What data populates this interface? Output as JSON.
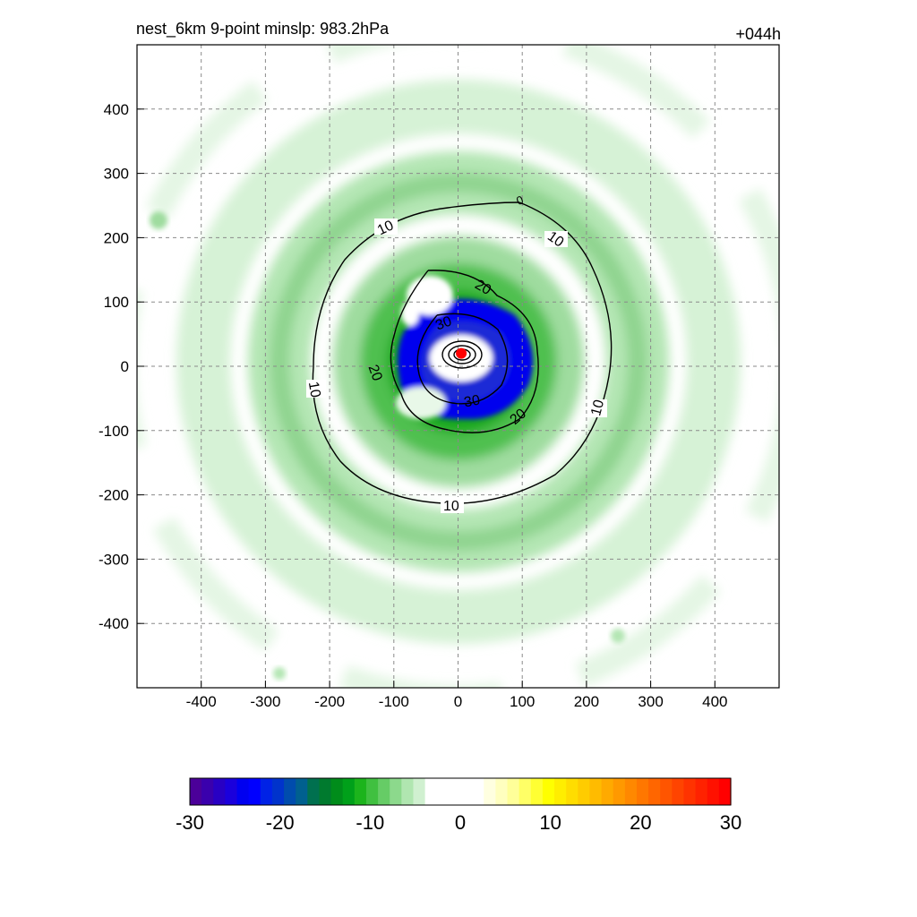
{
  "header": {
    "left_title": "nest_6km  9-point minslp: 983.2hPa",
    "right_title": "+044h"
  },
  "chart_data": {
    "type": "heatmap",
    "subtype": "filled-contour plot with overlaid line contours",
    "xlim": [
      -500,
      500
    ],
    "ylim": [
      -500,
      500
    ],
    "x_ticks": [
      -400,
      -300,
      -200,
      -100,
      0,
      100,
      200,
      300,
      400
    ],
    "y_ticks": [
      400,
      300,
      200,
      100,
      0,
      -100,
      -200,
      -300,
      -400
    ],
    "x_tick_labels": [
      "-400",
      "-300",
      "-200",
      "-100",
      "0",
      "100",
      "200",
      "300",
      "400"
    ],
    "y_tick_labels": [
      "400",
      "300",
      "200",
      "100",
      "0",
      "-100",
      "-200",
      "-300",
      "-400"
    ],
    "grid": true,
    "grid_style": "dashed",
    "center_marker": {
      "x": 5,
      "y": 20,
      "color": "#ff0000"
    },
    "contour_lines": [
      {
        "level": 10,
        "labels": [
          "10",
          "10",
          "10",
          "10",
          "10"
        ]
      },
      {
        "level": 20,
        "labels": [
          "20",
          "20",
          "20"
        ]
      },
      {
        "level": 30,
        "labels": [
          "30",
          "30"
        ]
      },
      {
        "level": 0,
        "labels": [
          "0"
        ]
      }
    ],
    "colorbar": {
      "range": [
        -30,
        30
      ],
      "tick_values": [
        -30,
        -20,
        -10,
        0,
        10,
        20,
        30
      ],
      "tick_labels": [
        "-30",
        "-20",
        "-10",
        "0",
        "10",
        "20",
        "30"
      ],
      "colors": [
        "#4b0099",
        "#3a00ad",
        "#2800c4",
        "#1a00dc",
        "#0000f0",
        "#0000ff",
        "#0022e6",
        "#0033cc",
        "#004cad",
        "#00608f",
        "#00704f",
        "#007a2e",
        "#008c1a",
        "#00a01a",
        "#1cb41c",
        "#40c040",
        "#66cc66",
        "#8cd98c",
        "#b0e6b0",
        "#d0f0d0",
        "#ffffff",
        "#ffffff",
        "#ffffff",
        "#ffffff",
        "#ffffff",
        "#ffffe0",
        "#ffffbf",
        "#ffff99",
        "#ffff66",
        "#ffff33",
        "#ffff00",
        "#ffee00",
        "#ffdd00",
        "#ffcc00",
        "#ffbb00",
        "#ffaa00",
        "#ff9900",
        "#ff8800",
        "#ff7700",
        "#ff6600",
        "#ff5500",
        "#ff4400",
        "#ff3300",
        "#ff2200",
        "#ff1100",
        "#ff0000"
      ]
    }
  }
}
